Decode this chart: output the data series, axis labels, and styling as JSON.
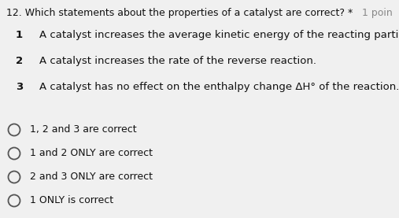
{
  "background_color": "#f0f0f0",
  "question_number": "12.",
  "question_text": "Which statements about the properties of a catalyst are correct?",
  "question_asterisk": " *",
  "points_text": "1 poin",
  "statements": [
    {
      "num": "1",
      "text": "A catalyst increases the average kinetic energy of the reacting particles."
    },
    {
      "num": "2",
      "text": "A catalyst increases the rate of the reverse reaction."
    },
    {
      "num": "3",
      "text": "A catalyst has no effect on the enthalpy change ΔH° of the reaction."
    }
  ],
  "options": [
    "1, 2 and 3 are correct",
    "1 and 2 ONLY are correct",
    "2 and 3 ONLY are correct",
    "1 ONLY is correct"
  ],
  "question_fontsize": 9.0,
  "statement_fontsize": 9.5,
  "option_fontsize": 9.0,
  "num_fontsize": 9.5,
  "text_color": "#111111",
  "circle_color": "#555555",
  "fig_width": 5.07,
  "fig_height": 2.77,
  "dpi": 100
}
